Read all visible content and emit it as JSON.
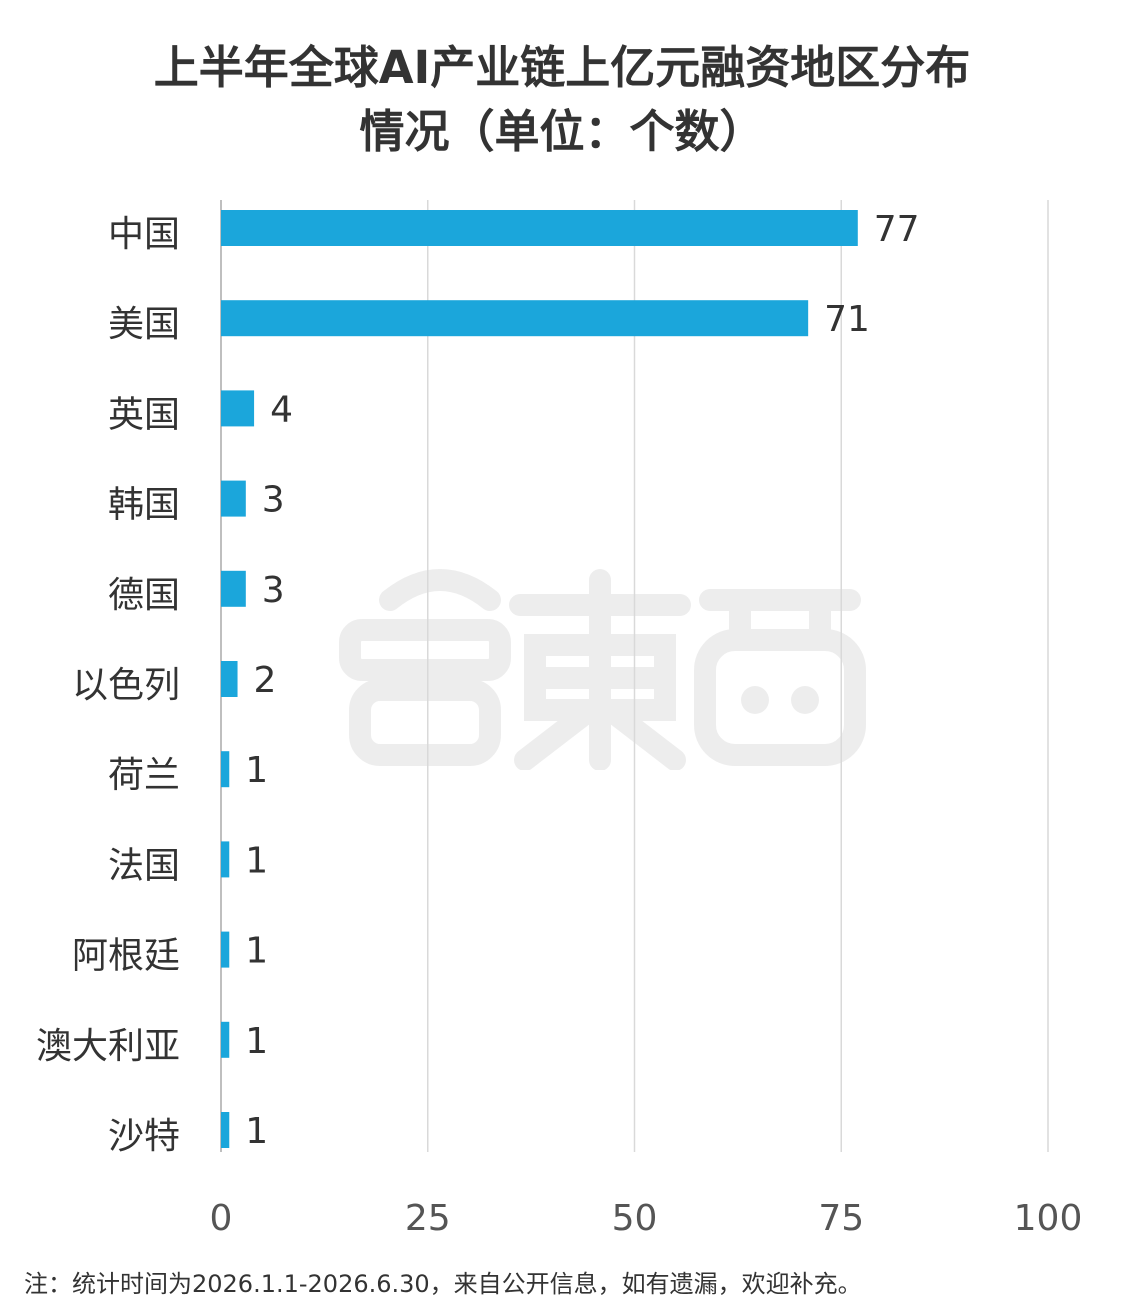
{
  "title_line1": "上半年全球AI产业链上亿元融资地区分布",
  "title_line2": "情况（单位：个数）",
  "footnote": "注：统计时间为2026.1.1-2026.6.30，来自公开信息，如有遗漏，欢迎补充。",
  "watermark_text": "智東西",
  "colors": {
    "bar": "#1ba6db",
    "grid": "#d9d9d9",
    "text": "#333333"
  },
  "chart_data": {
    "type": "bar",
    "orientation": "horizontal",
    "title": "上半年全球AI产业链上亿元融资地区分布情况（单位：个数）",
    "categories": [
      "中国",
      "美国",
      "英国",
      "韩国",
      "德国",
      "以色列",
      "荷兰",
      "法国",
      "阿根廷",
      "澳大利亚",
      "沙特"
    ],
    "values": [
      77,
      71,
      4,
      3,
      3,
      2,
      1,
      1,
      1,
      1,
      1
    ],
    "xlim": [
      0,
      100
    ],
    "xticks": [
      0,
      25,
      50,
      75,
      100
    ],
    "grid": true,
    "data_labels": true
  }
}
